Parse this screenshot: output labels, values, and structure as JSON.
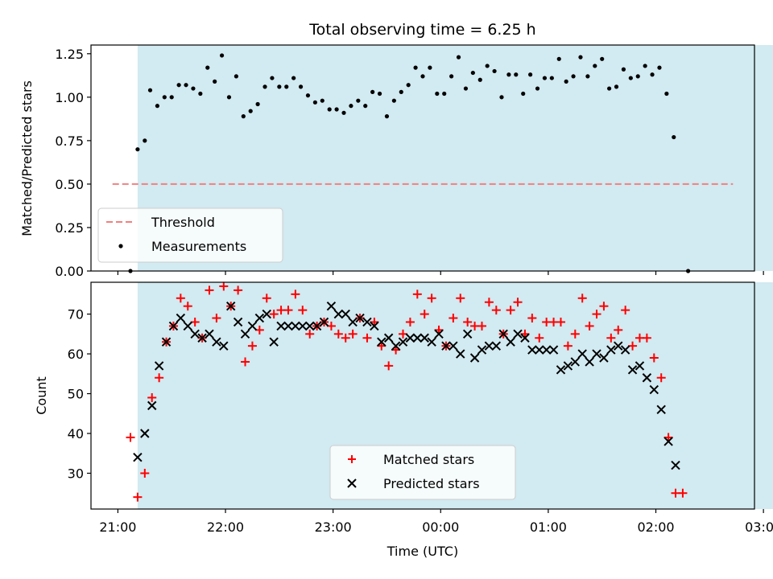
{
  "chart_data": {
    "type": "scatter",
    "title": "Total observing time = 6.25 h",
    "shaded_band": {
      "x_start": "21:11",
      "x_end": "03:26",
      "color": "#add8e6"
    },
    "xlabel": "Time (UTC)",
    "x_ticks": [
      {
        "label": "21:00",
        "minutes": 0
      },
      {
        "label": "22:00",
        "minutes": 60
      },
      {
        "label": "23:00",
        "minutes": 120
      },
      {
        "label": "00:00",
        "minutes": 180
      },
      {
        "label": "01:00",
        "minutes": 240
      },
      {
        "label": "02:00",
        "minutes": 300
      },
      {
        "label": "03:00",
        "minutes": 360
      }
    ],
    "top_panel": {
      "ylabel": "Matched/Predicted stars",
      "ylim": [
        0,
        1.3
      ],
      "y_ticks": [
        "0.00",
        "0.25",
        "0.50",
        "0.75",
        "1.00",
        "1.25"
      ],
      "threshold": {
        "name": "Threshold",
        "value": 0.5,
        "color": "#f08080"
      },
      "legend": [
        "Threshold",
        "Measurements"
      ],
      "series": [
        {
          "name": "Measurements",
          "color": "#000000",
          "marker": "dot",
          "values": [
            [
              7,
              0.0
            ],
            [
              11,
              0.7
            ],
            [
              15,
              0.75
            ],
            [
              18,
              1.04
            ],
            [
              22,
              0.95
            ],
            [
              26,
              1.0
            ],
            [
              30,
              1.0
            ],
            [
              34,
              1.07
            ],
            [
              38,
              1.07
            ],
            [
              42,
              1.05
            ],
            [
              46,
              1.02
            ],
            [
              50,
              1.17
            ],
            [
              54,
              1.09
            ],
            [
              58,
              1.24
            ],
            [
              62,
              1.0
            ],
            [
              66,
              1.12
            ],
            [
              70,
              0.89
            ],
            [
              74,
              0.92
            ],
            [
              78,
              0.96
            ],
            [
              82,
              1.06
            ],
            [
              86,
              1.11
            ],
            [
              90,
              1.06
            ],
            [
              94,
              1.06
            ],
            [
              98,
              1.11
            ],
            [
              102,
              1.06
            ],
            [
              106,
              1.01
            ],
            [
              110,
              0.97
            ],
            [
              114,
              0.98
            ],
            [
              118,
              0.93
            ],
            [
              122,
              0.93
            ],
            [
              126,
              0.91
            ],
            [
              130,
              0.95
            ],
            [
              134,
              0.98
            ],
            [
              138,
              0.95
            ],
            [
              142,
              1.03
            ],
            [
              146,
              1.02
            ],
            [
              150,
              0.89
            ],
            [
              154,
              0.98
            ],
            [
              158,
              1.03
            ],
            [
              162,
              1.07
            ],
            [
              166,
              1.17
            ],
            [
              170,
              1.12
            ],
            [
              174,
              1.17
            ],
            [
              178,
              1.02
            ],
            [
              182,
              1.02
            ],
            [
              186,
              1.12
            ],
            [
              190,
              1.23
            ],
            [
              194,
              1.05
            ],
            [
              198,
              1.14
            ],
            [
              202,
              1.1
            ],
            [
              206,
              1.18
            ],
            [
              210,
              1.15
            ],
            [
              214,
              1.0
            ],
            [
              218,
              1.13
            ],
            [
              222,
              1.13
            ],
            [
              226,
              1.02
            ],
            [
              230,
              1.13
            ],
            [
              234,
              1.05
            ],
            [
              238,
              1.11
            ],
            [
              242,
              1.11
            ],
            [
              246,
              1.22
            ],
            [
              250,
              1.09
            ],
            [
              254,
              1.12
            ],
            [
              258,
              1.23
            ],
            [
              262,
              1.12
            ],
            [
              266,
              1.18
            ],
            [
              270,
              1.22
            ],
            [
              274,
              1.05
            ],
            [
              278,
              1.06
            ],
            [
              282,
              1.16
            ],
            [
              286,
              1.11
            ],
            [
              290,
              1.12
            ],
            [
              294,
              1.18
            ],
            [
              298,
              1.13
            ],
            [
              302,
              1.17
            ],
            [
              306,
              1.02
            ],
            [
              310,
              0.77
            ],
            [
              318,
              0.0
            ]
          ]
        }
      ]
    },
    "bottom_panel": {
      "ylabel": "Count",
      "ylim": [
        21,
        78
      ],
      "y_ticks": [
        "30",
        "40",
        "50",
        "60",
        "70"
      ],
      "legend": [
        "Matched stars",
        "Predicted stars"
      ],
      "series": [
        {
          "name": "Matched stars",
          "color": "#ff0000",
          "marker": "plus",
          "values": [
            [
              7,
              39
            ],
            [
              11,
              24
            ],
            [
              15,
              30
            ],
            [
              19,
              49
            ],
            [
              23,
              54
            ],
            [
              27,
              63
            ],
            [
              31,
              67
            ],
            [
              35,
              74
            ],
            [
              39,
              72
            ],
            [
              43,
              68
            ],
            [
              47,
              64
            ],
            [
              51,
              76
            ],
            [
              55,
              69
            ],
            [
              59,
              77
            ],
            [
              63,
              72
            ],
            [
              67,
              76
            ],
            [
              71,
              58
            ],
            [
              75,
              62
            ],
            [
              79,
              66
            ],
            [
              83,
              74
            ],
            [
              87,
              70
            ],
            [
              91,
              71
            ],
            [
              95,
              71
            ],
            [
              99,
              75
            ],
            [
              103,
              71
            ],
            [
              107,
              65
            ],
            [
              111,
              67
            ],
            [
              115,
              68
            ],
            [
              119,
              67
            ],
            [
              123,
              65
            ],
            [
              127,
              64
            ],
            [
              131,
              65
            ],
            [
              135,
              69
            ],
            [
              139,
              64
            ],
            [
              143,
              68
            ],
            [
              147,
              62
            ],
            [
              151,
              57
            ],
            [
              155,
              61
            ],
            [
              159,
              65
            ],
            [
              163,
              68
            ],
            [
              167,
              75
            ],
            [
              171,
              70
            ],
            [
              175,
              74
            ],
            [
              179,
              66
            ],
            [
              183,
              62
            ],
            [
              187,
              69
            ],
            [
              191,
              74
            ],
            [
              195,
              68
            ],
            [
              199,
              67
            ],
            [
              203,
              67
            ],
            [
              207,
              73
            ],
            [
              211,
              71
            ],
            [
              215,
              65
            ],
            [
              219,
              71
            ],
            [
              223,
              73
            ],
            [
              227,
              65
            ],
            [
              231,
              69
            ],
            [
              235,
              64
            ],
            [
              239,
              68
            ],
            [
              243,
              68
            ],
            [
              247,
              68
            ],
            [
              251,
              62
            ],
            [
              255,
              65
            ],
            [
              259,
              74
            ],
            [
              263,
              67
            ],
            [
              267,
              70
            ],
            [
              271,
              72
            ],
            [
              275,
              64
            ],
            [
              279,
              66
            ],
            [
              283,
              71
            ],
            [
              287,
              62
            ],
            [
              291,
              64
            ],
            [
              295,
              64
            ],
            [
              299,
              59
            ],
            [
              303,
              54
            ],
            [
              307,
              39
            ],
            [
              311,
              25
            ],
            [
              315,
              25
            ]
          ]
        },
        {
          "name": "Predicted stars",
          "color": "#000000",
          "marker": "x",
          "values": [
            [
              11,
              34
            ],
            [
              15,
              40
            ],
            [
              19,
              47
            ],
            [
              23,
              57
            ],
            [
              27,
              63
            ],
            [
              31,
              67
            ],
            [
              35,
              69
            ],
            [
              39,
              67
            ],
            [
              43,
              65
            ],
            [
              47,
              64
            ],
            [
              51,
              65
            ],
            [
              55,
              63
            ],
            [
              59,
              62
            ],
            [
              63,
              72
            ],
            [
              67,
              68
            ],
            [
              71,
              65
            ],
            [
              75,
              67
            ],
            [
              79,
              69
            ],
            [
              83,
              70
            ],
            [
              87,
              63
            ],
            [
              91,
              67
            ],
            [
              95,
              67
            ],
            [
              99,
              67
            ],
            [
              103,
              67
            ],
            [
              107,
              67
            ],
            [
              111,
              67
            ],
            [
              115,
              68
            ],
            [
              119,
              72
            ],
            [
              123,
              70
            ],
            [
              127,
              70
            ],
            [
              131,
              68
            ],
            [
              135,
              69
            ],
            [
              139,
              68
            ],
            [
              143,
              67
            ],
            [
              147,
              63
            ],
            [
              151,
              64
            ],
            [
              155,
              62
            ],
            [
              159,
              63
            ],
            [
              163,
              64
            ],
            [
              167,
              64
            ],
            [
              171,
              64
            ],
            [
              175,
              63
            ],
            [
              179,
              65
            ],
            [
              183,
              62
            ],
            [
              187,
              62
            ],
            [
              191,
              60
            ],
            [
              195,
              65
            ],
            [
              199,
              59
            ],
            [
              203,
              61
            ],
            [
              207,
              62
            ],
            [
              211,
              62
            ],
            [
              215,
              65
            ],
            [
              219,
              63
            ],
            [
              223,
              65
            ],
            [
              227,
              64
            ],
            [
              231,
              61
            ],
            [
              235,
              61
            ],
            [
              239,
              61
            ],
            [
              243,
              61
            ],
            [
              247,
              56
            ],
            [
              251,
              57
            ],
            [
              255,
              58
            ],
            [
              259,
              60
            ],
            [
              263,
              58
            ],
            [
              267,
              60
            ],
            [
              271,
              59
            ],
            [
              275,
              61
            ],
            [
              279,
              62
            ],
            [
              283,
              61
            ],
            [
              287,
              56
            ],
            [
              291,
              57
            ],
            [
              295,
              54
            ],
            [
              299,
              51
            ],
            [
              303,
              46
            ],
            [
              307,
              38
            ],
            [
              311,
              32
            ]
          ]
        }
      ]
    }
  }
}
